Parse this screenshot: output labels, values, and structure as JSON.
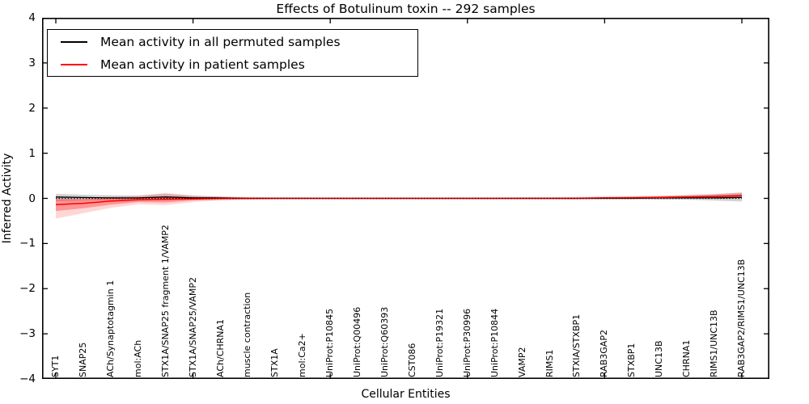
{
  "title": "Effects of Botulinum toxin -- 292 samples",
  "legend": {
    "position": "upper left",
    "items": [
      {
        "label": "Mean activity in all permuted samples",
        "color": "#000000"
      },
      {
        "label": "Mean activity in patient samples",
        "color": "#ff0000"
      }
    ]
  },
  "chart_data": {
    "type": "line",
    "title": "Effects of Botulinum toxin -- 292 samples",
    "xlabel": "Cellular Entities",
    "ylabel": "Inferred Activity",
    "ylim": [
      -4,
      4
    ],
    "yticks": [
      4,
      3,
      2,
      1,
      0,
      -1,
      -2,
      -3,
      -4
    ],
    "xtick_positions": [
      0,
      5,
      10,
      15,
      20,
      25
    ],
    "grid": false,
    "legend_position": "upper left",
    "background": "#ffffff",
    "zero_line": {
      "show": true,
      "style": "dotted",
      "color": "#000000",
      "y": 0
    },
    "categories": [
      "SYT1",
      "SNAP25",
      "ACh/Synaptotagmin 1",
      "mol:ACh",
      "STX1A/SNAP25 fragment 1/VAMP2",
      "STX1A/SNAP25/VAMP2",
      "ACh/CHRNA1",
      "muscle contraction",
      "STX1A",
      "mol:Ca2+",
      "UniProt:P10845",
      "UniProt:Q00496",
      "UniProt:Q60393",
      "CST086",
      "UniProt:P19321",
      "UniProt:P30996",
      "UniProt:P10844",
      "VAMP2",
      "RIMS1",
      "STXIA/STXBP1",
      "RAB3GAP2",
      "STXBP1",
      "UNC13B",
      "CHRNA1",
      "RIMS1/UNC13B",
      "RAB3GAP2/RIMS1/UNC13B"
    ],
    "series": [
      {
        "name": "Mean activity in all permuted samples",
        "color": "#000000",
        "band_color": "rgba(128,128,128,0.35)",
        "values": [
          0.03,
          0.02,
          0.01,
          0.01,
          0.03,
          0.01,
          0.01,
          0,
          0,
          0,
          0,
          0,
          0,
          0,
          0,
          0,
          0,
          0,
          0,
          0,
          0,
          0,
          0.01,
          0.01,
          0.01,
          0.02
        ],
        "band_low": [
          -0.06,
          -0.05,
          -0.04,
          -0.03,
          -0.04,
          -0.03,
          -0.02,
          -0.01,
          -0.01,
          -0.01,
          -0.01,
          -0.01,
          -0.01,
          -0.01,
          -0.01,
          -0.01,
          -0.01,
          -0.01,
          -0.01,
          -0.02,
          -0.02,
          -0.02,
          -0.03,
          -0.03,
          -0.05,
          -0.07
        ],
        "band_high": [
          0.1,
          0.08,
          0.07,
          0.06,
          0.1,
          0.06,
          0.04,
          0.02,
          0.02,
          0.02,
          0.01,
          0.01,
          0.01,
          0.01,
          0.01,
          0.01,
          0.01,
          0.02,
          0.02,
          0.02,
          0.03,
          0.04,
          0.05,
          0.07,
          0.09,
          0.13
        ]
      },
      {
        "name": "Mean activity in patient samples",
        "color": "#ff0000",
        "band_color": "rgba(255,0,0,0.30)",
        "outer_band_color": "rgba(255,0,0,0.16)",
        "values": [
          -0.14,
          -0.11,
          -0.06,
          -0.03,
          -0.02,
          -0.01,
          0,
          0,
          0,
          0,
          0,
          0,
          0,
          0,
          0,
          0,
          0,
          0,
          0,
          0,
          0.01,
          0.01,
          0.02,
          0.03,
          0.04,
          0.06
        ],
        "band_low": [
          -0.28,
          -0.22,
          -0.14,
          -0.08,
          -0.09,
          -0.05,
          -0.03,
          -0.02,
          -0.01,
          -0.01,
          -0.01,
          -0.01,
          -0.01,
          -0.01,
          -0.01,
          -0.01,
          -0.01,
          -0.01,
          -0.01,
          -0.01,
          0,
          0,
          0,
          0.01,
          0.01,
          0.02
        ],
        "band_high": [
          -0.02,
          -0.02,
          0,
          0.02,
          0.05,
          0.03,
          0.02,
          0.01,
          0.01,
          0.01,
          0.01,
          0.01,
          0.01,
          0.01,
          0.01,
          0.01,
          0.01,
          0.01,
          0.01,
          0.01,
          0.02,
          0.03,
          0.04,
          0.05,
          0.07,
          0.09
        ],
        "outer_band_low": [
          -0.45,
          -0.33,
          -0.21,
          -0.13,
          -0.15,
          -0.08,
          -0.05,
          -0.03,
          -0.02,
          -0.02,
          -0.02,
          -0.02,
          -0.02,
          -0.02,
          -0.02,
          -0.02,
          -0.02,
          -0.02,
          -0.02,
          -0.02,
          -0.01,
          -0.01,
          -0.01,
          0,
          0,
          0.01
        ],
        "outer_band_high": [
          0.04,
          0.02,
          0.04,
          0.06,
          0.12,
          0.06,
          0.04,
          0.03,
          0.02,
          0.02,
          0.02,
          0.02,
          0.02,
          0.02,
          0.02,
          0.02,
          0.02,
          0.02,
          0.02,
          0.03,
          0.04,
          0.05,
          0.06,
          0.08,
          0.1,
          0.13
        ]
      }
    ]
  }
}
